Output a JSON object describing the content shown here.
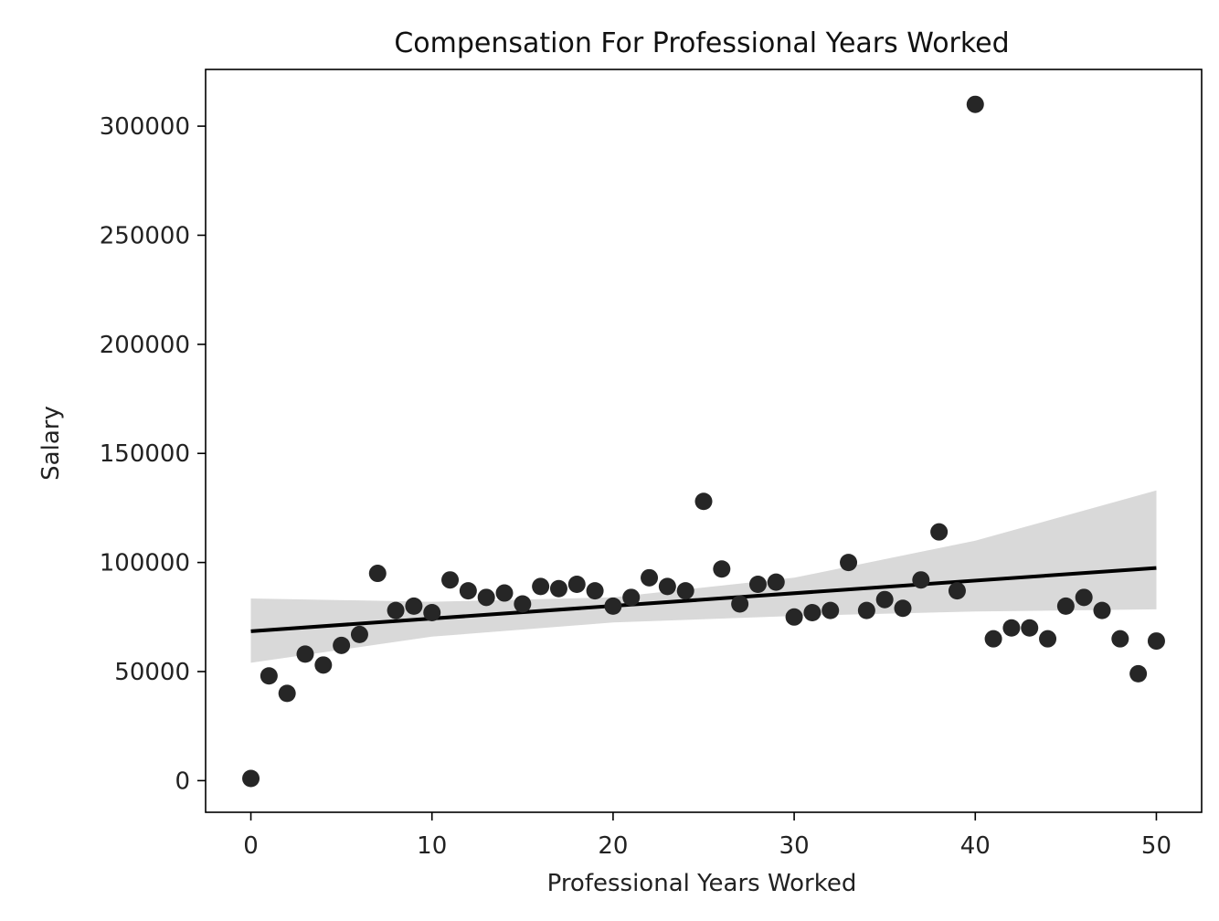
{
  "chart_data": {
    "type": "scatter",
    "title": "Compensation For Professional Years Worked",
    "xlabel": "Professional Years Worked",
    "ylabel": "Salary",
    "xlim": [
      -2.5,
      52.5
    ],
    "ylim": [
      -14500,
      326000
    ],
    "xticks": [
      0,
      10,
      20,
      30,
      40,
      50
    ],
    "yticks": [
      0,
      50000,
      100000,
      150000,
      200000,
      250000,
      300000
    ],
    "grid": false,
    "points": {
      "x": [
        0,
        1,
        2,
        3,
        4,
        5,
        6,
        7,
        8,
        9,
        10,
        11,
        12,
        13,
        14,
        15,
        16,
        17,
        18,
        19,
        20,
        21,
        22,
        23,
        24,
        25,
        26,
        27,
        28,
        29,
        30,
        31,
        32,
        33,
        34,
        35,
        36,
        37,
        38,
        39,
        40,
        41,
        42,
        43,
        44,
        45,
        46,
        47,
        48,
        49,
        50
      ],
      "y": [
        1000,
        48000,
        40000,
        58000,
        53000,
        62000,
        67000,
        95000,
        78000,
        80000,
        77000,
        92000,
        87000,
        84000,
        86000,
        81000,
        89000,
        88000,
        90000,
        87000,
        80000,
        84000,
        93000,
        89000,
        87000,
        128000,
        97000,
        81000,
        90000,
        91000,
        75000,
        77000,
        78000,
        100000,
        78000,
        83000,
        79000,
        92000,
        114000,
        87000,
        310000,
        65000,
        70000,
        70000,
        65000,
        80000,
        84000,
        78000,
        65000,
        49000,
        64000
      ]
    },
    "regression": {
      "x": [
        0,
        50
      ],
      "y": [
        68500,
        97500
      ]
    },
    "confidence_band": {
      "x": [
        0,
        10,
        20,
        30,
        40,
        50
      ],
      "upper": [
        83500,
        82000,
        84000,
        93000,
        110000,
        133000
      ],
      "lower": [
        54000,
        66000,
        72500,
        75500,
        77500,
        78500
      ]
    },
    "colors": {
      "points": "#262626",
      "line": "#000000",
      "band": "#d9d9d9",
      "axes": "#000000"
    }
  }
}
